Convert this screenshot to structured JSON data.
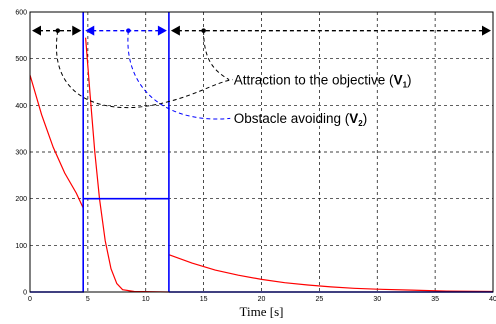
{
  "chart_data": {
    "type": "line",
    "title": "",
    "xlabel": "Time [s]",
    "ylabel": "",
    "xlim": [
      0,
      40
    ],
    "ylim": [
      0,
      600
    ],
    "grid": true,
    "x_ticks": [
      0,
      5,
      10,
      15,
      20,
      25,
      30,
      35,
      40
    ],
    "y_ticks": [
      0,
      100,
      200,
      300,
      400,
      500,
      600
    ],
    "series": [
      {
        "color": "#ff0000",
        "segments": [
          [
            [
              0,
              465
            ],
            [
              1,
              380
            ],
            [
              2,
              310
            ],
            [
              3,
              255
            ],
            [
              4,
              212
            ],
            [
              4.6,
              180
            ]
          ],
          [
            [
              4.8,
              545
            ],
            [
              5.2,
              420
            ],
            [
              5.6,
              300
            ],
            [
              6.0,
              200
            ],
            [
              6.5,
              110
            ],
            [
              7.0,
              50
            ],
            [
              7.5,
              18
            ],
            [
              8.0,
              5
            ],
            [
              9.0,
              1
            ],
            [
              12.0,
              0
            ]
          ],
          [
            [
              12.0,
              80
            ],
            [
              14,
              62
            ],
            [
              16,
              47
            ],
            [
              18,
              36
            ],
            [
              20,
              27
            ],
            [
              22,
              20
            ],
            [
              24,
              15
            ],
            [
              26,
              11
            ],
            [
              28,
              8
            ],
            [
              30,
              6
            ],
            [
              33,
              4
            ],
            [
              36,
              2
            ],
            [
              40,
              1
            ]
          ]
        ]
      },
      {
        "color": "#0000ff",
        "segments": [
          [
            [
              0,
              0
            ],
            [
              4.6,
              0
            ],
            [
              4.6,
              600
            ]
          ],
          [
            [
              4.6,
              200
            ],
            [
              12.0,
              200
            ]
          ],
          [
            [
              12.0,
              0
            ],
            [
              12.0,
              600
            ]
          ],
          [
            [
              12.0,
              0
            ],
            [
              40,
              0
            ]
          ]
        ]
      }
    ],
    "phase_markers": [
      {
        "type": "black-arrow",
        "from": 0,
        "to": 4.6,
        "y": 560,
        "dot_x": 2.4
      },
      {
        "type": "blue-arrow",
        "from": 4.6,
        "to": 12.0,
        "y": 560,
        "dot_x": 8.5
      },
      {
        "type": "black-arrow",
        "from": 12.0,
        "to": 40,
        "y": 560,
        "dot_x": 15
      }
    ],
    "annotations": [
      {
        "text": "Attraction to the objective (",
        "symbol": "V",
        "subscript": "1",
        "suffix": ")",
        "color": "#000000"
      },
      {
        "text": "Obstacle avoiding (",
        "symbol": "V",
        "subscript": "2",
        "suffix": ")",
        "color": "#000000"
      }
    ],
    "colors": {
      "attraction": "#ff0000",
      "avoiding_marker": "#0000ff",
      "grid": "#000000",
      "leader_black": "#000000",
      "leader_blue": "#0000ff"
    }
  }
}
